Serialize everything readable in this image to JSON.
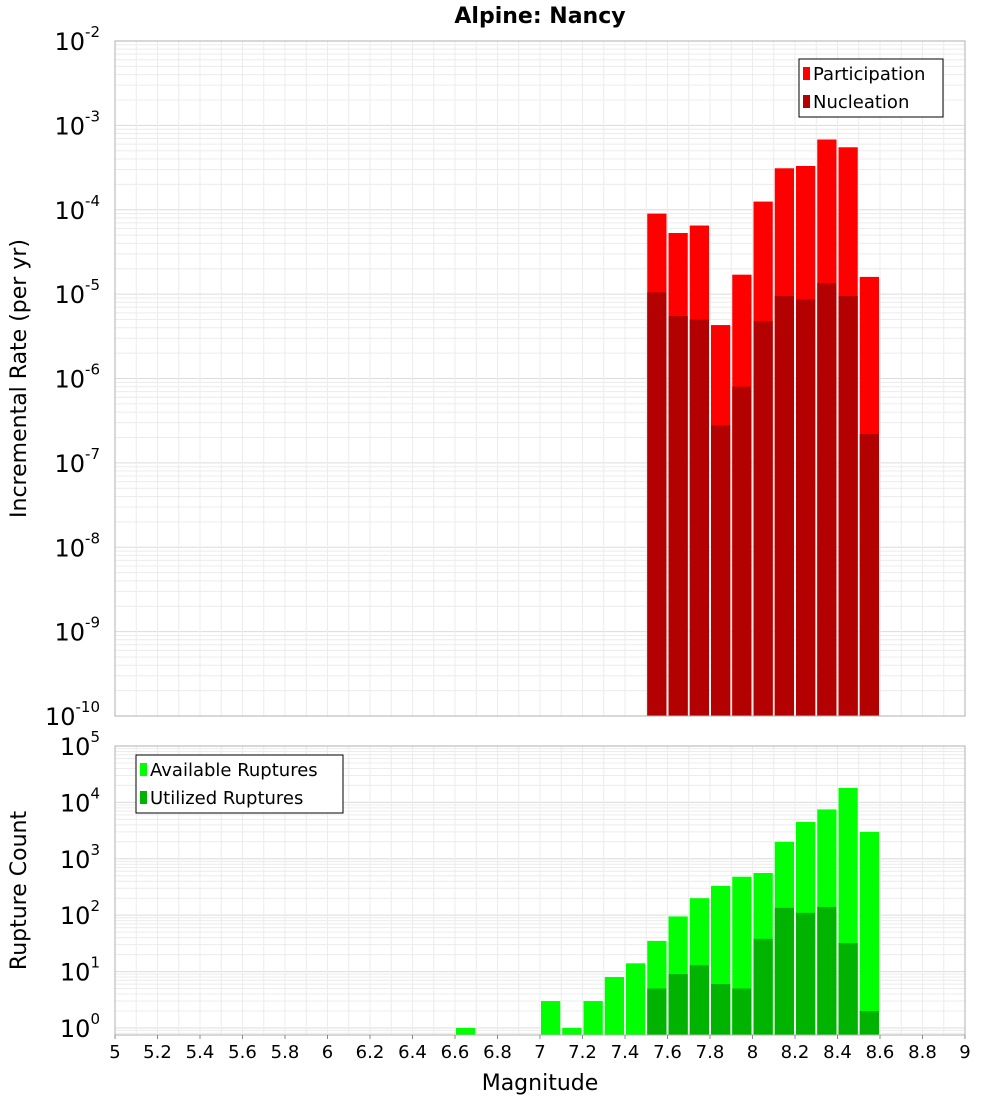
{
  "chart_data": [
    {
      "type": "bar",
      "title": "Alpine: Nancy",
      "xlabel": "",
      "ylabel": "Incremental Rate (per yr)",
      "yscale": "log",
      "xlim": [
        5,
        9
      ],
      "ylim": [
        1e-10,
        0.01
      ],
      "ytick_base": "10",
      "ytick_exponents": [
        "-10",
        "-9",
        "-8",
        "-7",
        "-6",
        "-5",
        "-4",
        "-3",
        "-2"
      ],
      "legend_position": "top-right",
      "grid": true,
      "bin_width": 0.1,
      "x": [
        7.55,
        7.65,
        7.75,
        7.85,
        7.95,
        8.05,
        8.15,
        8.25,
        8.35,
        8.45,
        8.55
      ],
      "series": [
        {
          "name": "Participation",
          "color": "#ff0000",
          "values": [
            9e-05,
            5.3e-05,
            6.5e-05,
            4.3e-06,
            1.7e-05,
            0.000125,
            0.00031,
            0.00033,
            0.00068,
            0.00055,
            1.6e-05
          ]
        },
        {
          "name": "Nucleation",
          "color": "#b30000",
          "values": [
            1.05e-05,
            5.5e-06,
            5e-06,
            2.8e-07,
            8e-07,
            4.8e-06,
            9.5e-06,
            8.7e-06,
            1.35e-05,
            9.5e-06,
            2.2e-07
          ]
        }
      ]
    },
    {
      "type": "bar",
      "title": "",
      "xlabel": "Magnitude",
      "ylabel": "Rupture Count",
      "yscale": "log",
      "xlim": [
        5,
        9
      ],
      "ylim": [
        0.75,
        100000.0
      ],
      "ytick_base": "10",
      "ytick_exponents": [
        "0",
        "1",
        "2",
        "3",
        "4",
        "5"
      ],
      "xticks": [
        "5",
        "5.2",
        "5.4",
        "5.6",
        "5.8",
        "6",
        "6.2",
        "6.4",
        "6.6",
        "6.8",
        "7",
        "7.2",
        "7.4",
        "7.6",
        "7.8",
        "8",
        "8.2",
        "8.4",
        "8.6",
        "8.8",
        "9"
      ],
      "legend_position": "top-left",
      "grid": true,
      "bin_width": 0.1,
      "x": [
        6.65,
        7.05,
        7.15,
        7.25,
        7.35,
        7.45,
        7.55,
        7.65,
        7.75,
        7.85,
        7.95,
        8.05,
        8.15,
        8.25,
        8.35,
        8.45,
        8.55
      ],
      "series": [
        {
          "name": "Available Ruptures",
          "color": "#00ff00",
          "values": [
            1,
            3,
            1,
            3,
            8,
            14,
            35,
            95,
            200,
            330,
            480,
            560,
            2000,
            4500,
            7500,
            18000,
            3000
          ]
        },
        {
          "name": "Utilized Ruptures",
          "color": "#00b300",
          "values": [
            0,
            0,
            0,
            0,
            0,
            0,
            5,
            9,
            13,
            6,
            5,
            38,
            135,
            110,
            140,
            32,
            2
          ]
        }
      ]
    }
  ]
}
